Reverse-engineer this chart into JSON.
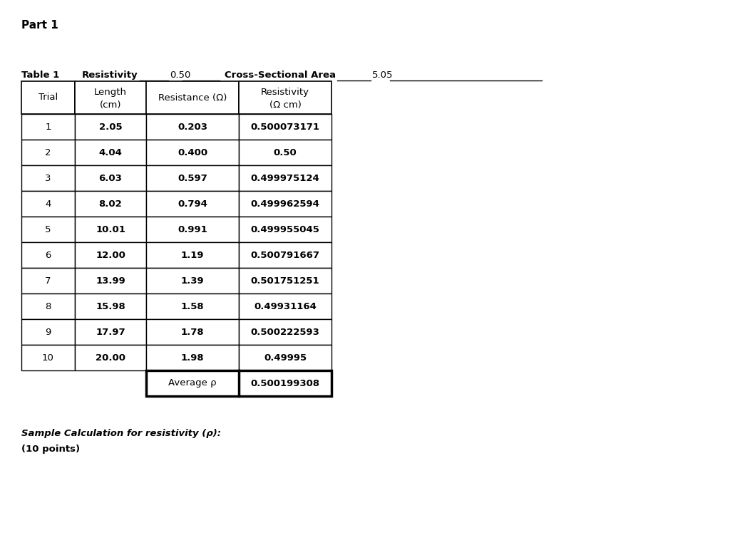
{
  "title": "Part 1",
  "table_label": "Table 1",
  "resistivity_label": "Resistivity",
  "resistivity_value": "0.50",
  "cross_section_label": "Cross-Sectional Area",
  "cross_section_value": "5.05",
  "col_headers_row1": [
    "Trial",
    "Length",
    "Resistance (Ω)",
    "Resistivity"
  ],
  "col_headers_row2": [
    "",
    "(cm)",
    "",
    "(Ω cm)"
  ],
  "trials": [
    "1",
    "2",
    "3",
    "4",
    "5",
    "6",
    "7",
    "8",
    "9",
    "10"
  ],
  "lengths": [
    "2.05",
    "4.04",
    "6.03",
    "8.02",
    "10.01",
    "12.00",
    "13.99",
    "15.98",
    "17.97",
    "20.00"
  ],
  "resistances": [
    "0.203",
    "0.400",
    "0.597",
    "0.794",
    "0.991",
    "1.19",
    "1.39",
    "1.58",
    "1.78",
    "1.98"
  ],
  "resistivities": [
    "0.500073171",
    "0.50",
    "0.499975124",
    "0.499962594",
    "0.499955045",
    "0.500791667",
    "0.501751251",
    "0.49931164",
    "0.500222593",
    "0.49995"
  ],
  "average_rho": "0.500199308",
  "footer_line1": "Sample Calculation for resistivity (ρ):",
  "footer_line2": "(10 points)",
  "bg_color": "#ffffff",
  "text_color": "#000000"
}
